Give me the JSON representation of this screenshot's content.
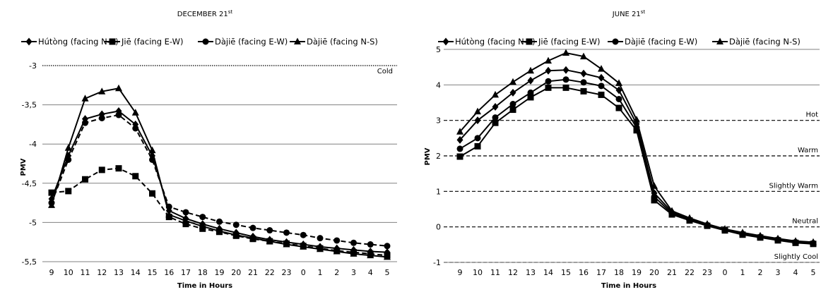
{
  "chart_data": [
    {
      "type": "line",
      "title": "DECEMBER 21",
      "title_sup": "st",
      "xlabel": "Time in Hours",
      "ylabel": "PMV",
      "x": [
        "9",
        "10",
        "11",
        "12",
        "13",
        "14",
        "15",
        "16",
        "17",
        "18",
        "19",
        "20",
        "21",
        "22",
        "23",
        "0",
        "1",
        "2",
        "3",
        "4",
        "5"
      ],
      "yticks": [
        "-3",
        "-3,5",
        "-4",
        "-4,5",
        "-5",
        "-5,5"
      ],
      "ylim": [
        -5.5,
        -3
      ],
      "ytick_values": [
        -3,
        -3.5,
        -4,
        -4.5,
        -5,
        -5.5
      ],
      "ydirection": "descending",
      "grid": true,
      "legend_position": "top",
      "zones": [
        {
          "label": "Cold",
          "value": -3
        }
      ],
      "series": [
        {
          "name": "Hútòng (facing N-S)",
          "marker": "diamond",
          "dash": "solid",
          "values": [
            -4.7,
            -4.15,
            -3.68,
            -3.62,
            -3.58,
            -3.75,
            -4.15,
            -4.85,
            -4.95,
            -5.02,
            -5.08,
            -5.13,
            -5.18,
            -5.22,
            -5.25,
            -5.28,
            -5.31,
            -5.33,
            -5.35,
            -5.37,
            -5.38
          ]
        },
        {
          "name": "Jiē (facing E-W)",
          "marker": "square",
          "dash": "dashed",
          "values": [
            -4.62,
            -4.6,
            -4.45,
            -4.33,
            -4.31,
            -4.41,
            -4.63,
            -4.93,
            -5.02,
            -5.08,
            -5.12,
            -5.17,
            -5.21,
            -5.24,
            -5.27,
            -5.3,
            -5.33,
            -5.36,
            -5.38,
            -5.4,
            -5.42
          ]
        },
        {
          "name": "Dàjiē (facing E-W)",
          "marker": "circle",
          "dash": "dashed",
          "values": [
            -4.75,
            -4.2,
            -3.73,
            -3.67,
            -3.63,
            -3.8,
            -4.2,
            -4.8,
            -4.87,
            -4.93,
            -4.99,
            -5.03,
            -5.07,
            -5.1,
            -5.13,
            -5.16,
            -5.2,
            -5.23,
            -5.26,
            -5.28,
            -5.3
          ]
        },
        {
          "name": "Dàjiē (facing N-S)",
          "marker": "triangle",
          "dash": "solid",
          "values": [
            -4.78,
            -4.05,
            -3.42,
            -3.33,
            -3.29,
            -3.6,
            -4.08,
            -4.9,
            -4.98,
            -5.05,
            -5.11,
            -5.16,
            -5.2,
            -5.24,
            -5.28,
            -5.31,
            -5.34,
            -5.37,
            -5.4,
            -5.42,
            -5.44
          ]
        }
      ]
    },
    {
      "type": "line",
      "title": "JUNE 21",
      "title_sup": "st",
      "xlabel": "Time in Hours",
      "ylabel": "PMV",
      "x": [
        "9",
        "10",
        "11",
        "12",
        "13",
        "14",
        "15",
        "16",
        "17",
        "18",
        "19",
        "20",
        "21",
        "22",
        "23",
        "0",
        "1",
        "2",
        "3",
        "4",
        "5"
      ],
      "yticks": [
        "5",
        "4",
        "3",
        "2",
        "1",
        "0",
        "-1"
      ],
      "ylim": [
        -1,
        5
      ],
      "ytick_values": [
        5,
        4,
        3,
        2,
        1,
        0,
        -1
      ],
      "ydirection": "ascending",
      "grid": true,
      "legend_position": "top",
      "zones": [
        {
          "label": "Hot",
          "value": 3
        },
        {
          "label": "Warm",
          "value": 2
        },
        {
          "label": "Slightly Warm",
          "value": 1
        },
        {
          "label": "Neutral",
          "value": 0
        },
        {
          "label": "Slightly Cool",
          "value": -1
        }
      ],
      "series": [
        {
          "name": "Hútòng (facing N-S)",
          "marker": "diamond",
          "dash": "solid",
          "values": [
            2.45,
            3.0,
            3.38,
            3.78,
            4.12,
            4.4,
            4.42,
            4.32,
            4.2,
            3.85,
            2.9,
            0.95,
            0.42,
            0.22,
            0.06,
            -0.08,
            -0.18,
            -0.27,
            -0.35,
            -0.42,
            -0.45
          ]
        },
        {
          "name": "Jiē (facing E-W)",
          "marker": "square",
          "dash": "solid",
          "values": [
            1.98,
            2.27,
            2.93,
            3.3,
            3.65,
            3.92,
            3.92,
            3.82,
            3.72,
            3.35,
            2.72,
            0.75,
            0.35,
            0.18,
            0.03,
            -0.1,
            -0.22,
            -0.3,
            -0.38,
            -0.45,
            -0.48
          ]
        },
        {
          "name": "Dàjiē (facing E-W)",
          "marker": "circle",
          "dash": "solid",
          "values": [
            2.2,
            2.5,
            3.08,
            3.46,
            3.78,
            4.1,
            4.15,
            4.07,
            3.97,
            3.6,
            2.8,
            0.85,
            0.38,
            0.2,
            0.05,
            -0.09,
            -0.2,
            -0.28,
            -0.36,
            -0.43,
            -0.46
          ]
        },
        {
          "name": "Dàjiē (facing N-S)",
          "marker": "triangle",
          "dash": "solid",
          "values": [
            2.68,
            3.25,
            3.72,
            4.08,
            4.4,
            4.68,
            4.9,
            4.8,
            4.45,
            4.05,
            3.02,
            1.15,
            0.45,
            0.25,
            0.08,
            -0.06,
            -0.16,
            -0.25,
            -0.33,
            -0.4,
            -0.43
          ]
        }
      ]
    }
  ]
}
